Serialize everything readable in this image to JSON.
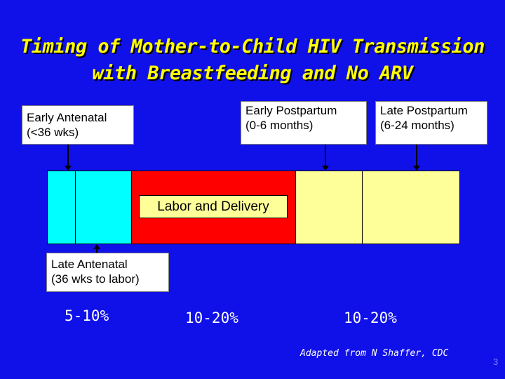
{
  "title": {
    "line1": "Timing of Mother-to-Child HIV Transmission",
    "line2": "with Breastfeeding and No ARV"
  },
  "labels": {
    "early_antenatal": {
      "line1": "Early Antenatal",
      "line2": "(<36 wks)"
    },
    "early_postpartum": {
      "line1": "Early Postpartum",
      "line2": "(0-6 months)"
    },
    "late_postpartum": {
      "line1": "Late Postpartum",
      "line2": "(6-24 months)"
    },
    "late_antenatal": {
      "line1": "Late Antenatal",
      "line2": "(36 wks to labor)"
    },
    "labor_delivery": "Labor and Delivery"
  },
  "percentages": {
    "antenatal": "5-10%",
    "labor": "10-20%",
    "postpartum": "10-20%"
  },
  "credit": "Adapted from N Shaffer, CDC",
  "page_number": "3",
  "colors": {
    "background": "#1010e8",
    "title": "#ffff00",
    "antenatal": "#00ffff",
    "labor": "#ff0000",
    "postpartum": "#ffff99"
  }
}
